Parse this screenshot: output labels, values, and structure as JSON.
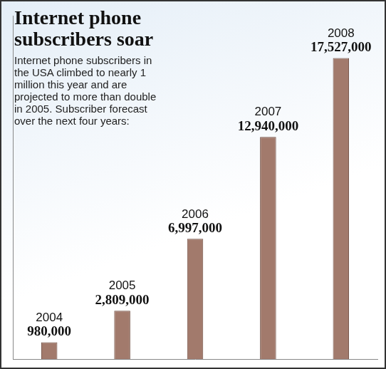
{
  "chart_data": {
    "type": "bar",
    "title": "Internet phone subscribers soar",
    "subtitle": "Internet phone subscribers in the USA climbed to nearly 1 million this year and are projected to more than double in 2005. Subscriber forecast over the next four years:",
    "categories": [
      "2004",
      "2005",
      "2006",
      "2007",
      "2008"
    ],
    "values": [
      980000,
      2809000,
      6997000,
      12940000,
      17527000
    ],
    "value_labels": [
      "980,000",
      "2,809,000",
      "6,997,000",
      "12,940,000",
      "17,527,000"
    ],
    "color": "#a27a6c",
    "ylim": [
      0,
      20000000
    ],
    "grid": false,
    "data_labels": true,
    "tick_labels": false
  }
}
